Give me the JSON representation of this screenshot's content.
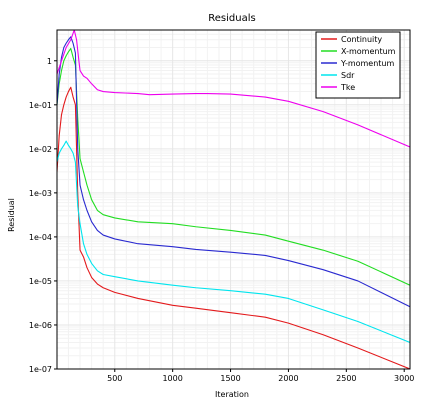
{
  "chart_data": {
    "type": "line",
    "title": "Residuals",
    "xlabel": "Iteration",
    "ylabel": "Residual",
    "xscale": "linear",
    "yscale": "log",
    "xlim": [
      1,
      3050
    ],
    "ylim": [
      1e-07,
      5
    ],
    "grid": true,
    "legend_position": "top-right",
    "x_ticks": [
      500,
      1000,
      1500,
      2000,
      2500,
      3000
    ],
    "x_tick_labels": [
      "500",
      "1000",
      "1500",
      "2000",
      "2500",
      "3000"
    ],
    "y_ticks": [
      1e-07,
      1e-06,
      1e-05,
      0.0001,
      0.001,
      0.01,
      0.1,
      1
    ],
    "y_tick_labels": [
      "1e-07",
      "1e-06",
      "1e-05",
      "1e-04",
      "1e-03",
      "1e-02",
      "1e-01",
      "1"
    ],
    "series": [
      {
        "name": "Continuity",
        "color": "#e31a1c",
        "x": [
          1,
          20,
          40,
          60,
          80,
          100,
          120,
          140,
          160,
          180,
          200,
          230,
          260,
          300,
          350,
          400,
          500,
          700,
          1000,
          1200,
          1500,
          1800,
          2000,
          2300,
          2600,
          3050
        ],
        "y": [
          0.003,
          0.02,
          0.06,
          0.1,
          0.15,
          0.2,
          0.25,
          0.15,
          0.1,
          0.001,
          5e-05,
          3.5e-05,
          2e-05,
          1.2e-05,
          8.5e-06,
          7e-06,
          5.5e-06,
          4e-06,
          2.8e-06,
          2.4e-06,
          1.9e-06,
          1.5e-06,
          1.1e-06,
          6e-07,
          3e-07,
          1e-07
        ]
      },
      {
        "name": "X-momentum",
        "color": "#22dd22",
        "x": [
          1,
          20,
          40,
          60,
          80,
          100,
          120,
          140,
          160,
          180,
          200,
          230,
          260,
          300,
          350,
          400,
          500,
          700,
          1000,
          1200,
          1500,
          1800,
          2000,
          2300,
          2600,
          3050
        ],
        "y": [
          0.1,
          0.3,
          0.6,
          1.0,
          1.3,
          1.6,
          1.9,
          1.2,
          0.8,
          0.05,
          0.006,
          0.003,
          0.0015,
          0.0007,
          0.0004,
          0.00032,
          0.00027,
          0.00022,
          0.0002,
          0.00017,
          0.00014,
          0.00011,
          8e-05,
          5e-05,
          2.8e-05,
          8e-06
        ]
      },
      {
        "name": "Y-momentum",
        "color": "#2a2ad0",
        "x": [
          1,
          20,
          40,
          60,
          80,
          100,
          120,
          140,
          160,
          180,
          200,
          230,
          260,
          300,
          350,
          400,
          500,
          700,
          1000,
          1200,
          1500,
          1800,
          2000,
          2300,
          2600,
          3050
        ],
        "y": [
          0.1,
          0.5,
          1.2,
          2.0,
          2.5,
          3.0,
          3.5,
          2.5,
          1.5,
          0.01,
          0.0015,
          0.0007,
          0.0004,
          0.00022,
          0.00014,
          0.00011,
          9e-05,
          7e-05,
          6e-05,
          5.2e-05,
          4.5e-05,
          3.8e-05,
          2.9e-05,
          1.8e-05,
          1e-05,
          2.6e-06
        ]
      },
      {
        "name": "Sdr",
        "color": "#00e5ee",
        "x": [
          1,
          20,
          40,
          60,
          80,
          100,
          120,
          140,
          160,
          180,
          200,
          230,
          260,
          300,
          350,
          400,
          500,
          700,
          1000,
          1200,
          1500,
          1800,
          2000,
          2300,
          2600,
          3050
        ],
        "y": [
          0.005,
          0.008,
          0.01,
          0.012,
          0.015,
          0.012,
          0.01,
          0.008,
          0.005,
          0.0005,
          0.0002,
          7e-05,
          4e-05,
          2.5e-05,
          1.7e-05,
          1.4e-05,
          1.25e-05,
          1e-05,
          8e-06,
          7e-06,
          6e-06,
          5e-06,
          4e-06,
          2.2e-06,
          1.2e-06,
          4e-07
        ]
      },
      {
        "name": "Tke",
        "color": "#ee00ee",
        "x": [
          1,
          40,
          80,
          120,
          150,
          170,
          190,
          200,
          230,
          260,
          300,
          350,
          400,
          500,
          700,
          800,
          1000,
          1200,
          1300,
          1500,
          1800,
          2000,
          2300,
          2600,
          3050
        ],
        "y": [
          0.5,
          1.0,
          2.0,
          3.0,
          5.0,
          3.0,
          1.0,
          0.6,
          0.45,
          0.4,
          0.3,
          0.22,
          0.2,
          0.19,
          0.18,
          0.17,
          0.175,
          0.18,
          0.18,
          0.175,
          0.15,
          0.12,
          0.07,
          0.035,
          0.011
        ]
      }
    ]
  }
}
